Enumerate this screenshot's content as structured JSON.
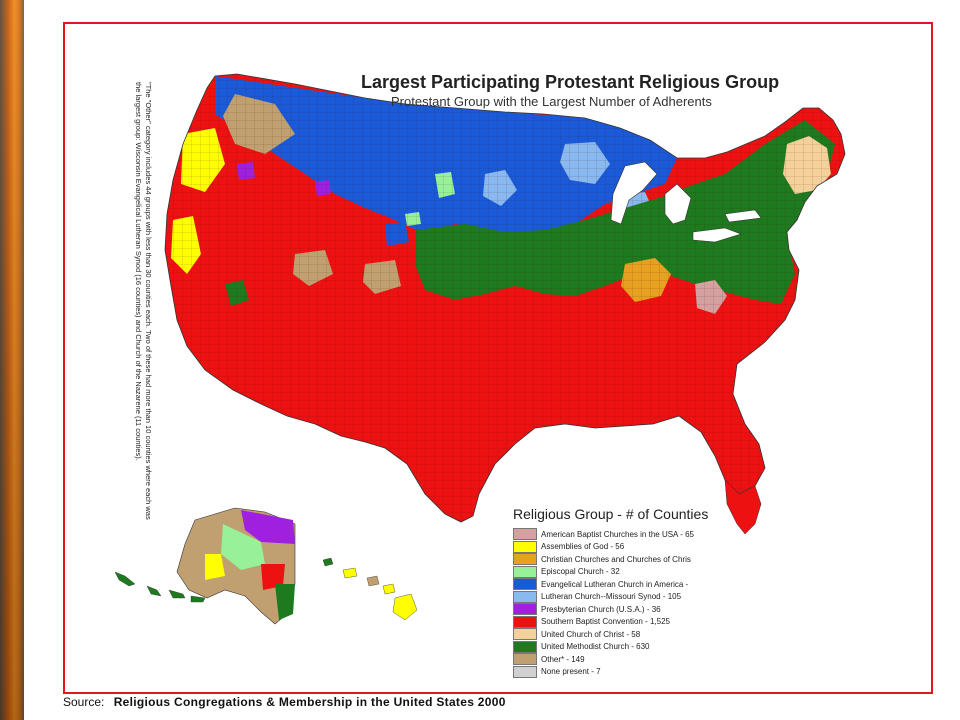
{
  "map": {
    "title": "Largest Participating Protestant Religious Group",
    "subtitle": "Protestant Group with the Largest Number of Adherents",
    "side_note": "\"The \"Other\" category includes 44 groups with less than 30 counties each. Two of these had more than 10 counties where each was the largest group: Wisconsin Evangelical Lutheran Synod (16 counties) and Church of the Nazarene (11 counties)."
  },
  "colors": {
    "frame": "#e4161b",
    "american_baptist": "#d4a0a0",
    "assemblies_of_god": "#ffff00",
    "christian_churches": "#e8a020",
    "episcopal": "#98f098",
    "elca": "#1a5ad8",
    "lutheran_missouri": "#8ab8f0",
    "presbyterian": "#a020e0",
    "southern_baptist": "#ee1111",
    "ucc": "#f4d09a",
    "methodist": "#1e7a1e",
    "other": "#c0a070",
    "none_present": "#d0d0d0"
  },
  "legend": {
    "title": "Religious Group - # of Counties",
    "items": [
      {
        "label": "American Baptist Churches in the USA - 65",
        "color": "#d4a0a0"
      },
      {
        "label": "Assemblies of God - 56",
        "color": "#ffff00"
      },
      {
        "label": "Christian Churches and Churches of Chris",
        "color": "#e8a020"
      },
      {
        "label": "Episcopal Church - 32",
        "color": "#98f098"
      },
      {
        "label": "Evangelical Lutheran Church in America -",
        "color": "#1a5ad8"
      },
      {
        "label": "Lutheran Church--Missouri Synod - 105",
        "color": "#8ab8f0"
      },
      {
        "label": "Presbyterian Church (U.S.A.) - 36",
        "color": "#a020e0"
      },
      {
        "label": "Southern Baptist Convention - 1,525",
        "color": "#ee1111"
      },
      {
        "label": "United Church of Christ - 58",
        "color": "#f4d09a"
      },
      {
        "label": "United Methodist Church - 630",
        "color": "#1e7a1e"
      },
      {
        "label": "Other* - 149",
        "color": "#c0a070"
      },
      {
        "label": "None present - 7",
        "color": "#d0d0d0"
      }
    ]
  },
  "source": {
    "label": "Source:",
    "value": "Religious Congregations & Membership in the United States 2000"
  }
}
